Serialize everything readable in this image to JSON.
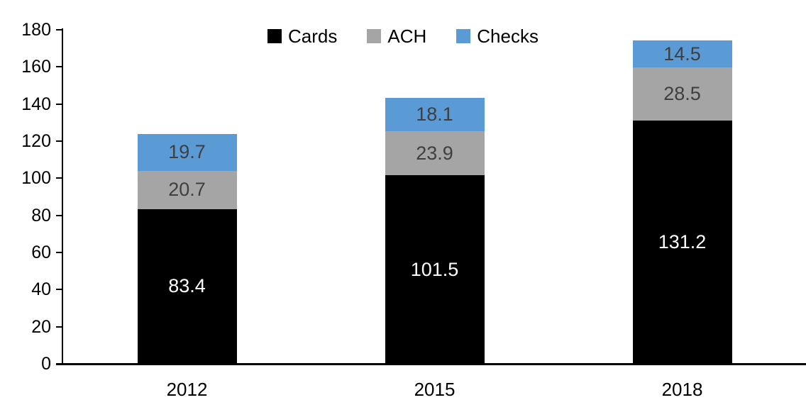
{
  "chart_data": {
    "type": "bar",
    "stacked": true,
    "title": "",
    "xlabel": "",
    "ylabel": "",
    "categories": [
      "2012",
      "2015",
      "2018"
    ],
    "series": [
      {
        "name": "Cards",
        "color": "#000000",
        "label_color": "#ffffff",
        "values": [
          83.4,
          101.5,
          131.2
        ]
      },
      {
        "name": "ACH",
        "color": "#a5a5a5",
        "label_color": "#3f3f3f",
        "values": [
          20.7,
          23.9,
          28.5
        ]
      },
      {
        "name": "Checks",
        "color": "#5b9bd5",
        "label_color": "#3f3f3f",
        "values": [
          19.7,
          18.1,
          14.5
        ]
      }
    ],
    "totals": [
      123.8,
      143.5,
      174.2
    ],
    "ylim": [
      0,
      180
    ],
    "yticks": [
      0,
      20,
      40,
      60,
      80,
      100,
      120,
      140,
      160,
      180
    ],
    "grid": false,
    "legend_position": "top-center",
    "axis_color": "#000000"
  }
}
